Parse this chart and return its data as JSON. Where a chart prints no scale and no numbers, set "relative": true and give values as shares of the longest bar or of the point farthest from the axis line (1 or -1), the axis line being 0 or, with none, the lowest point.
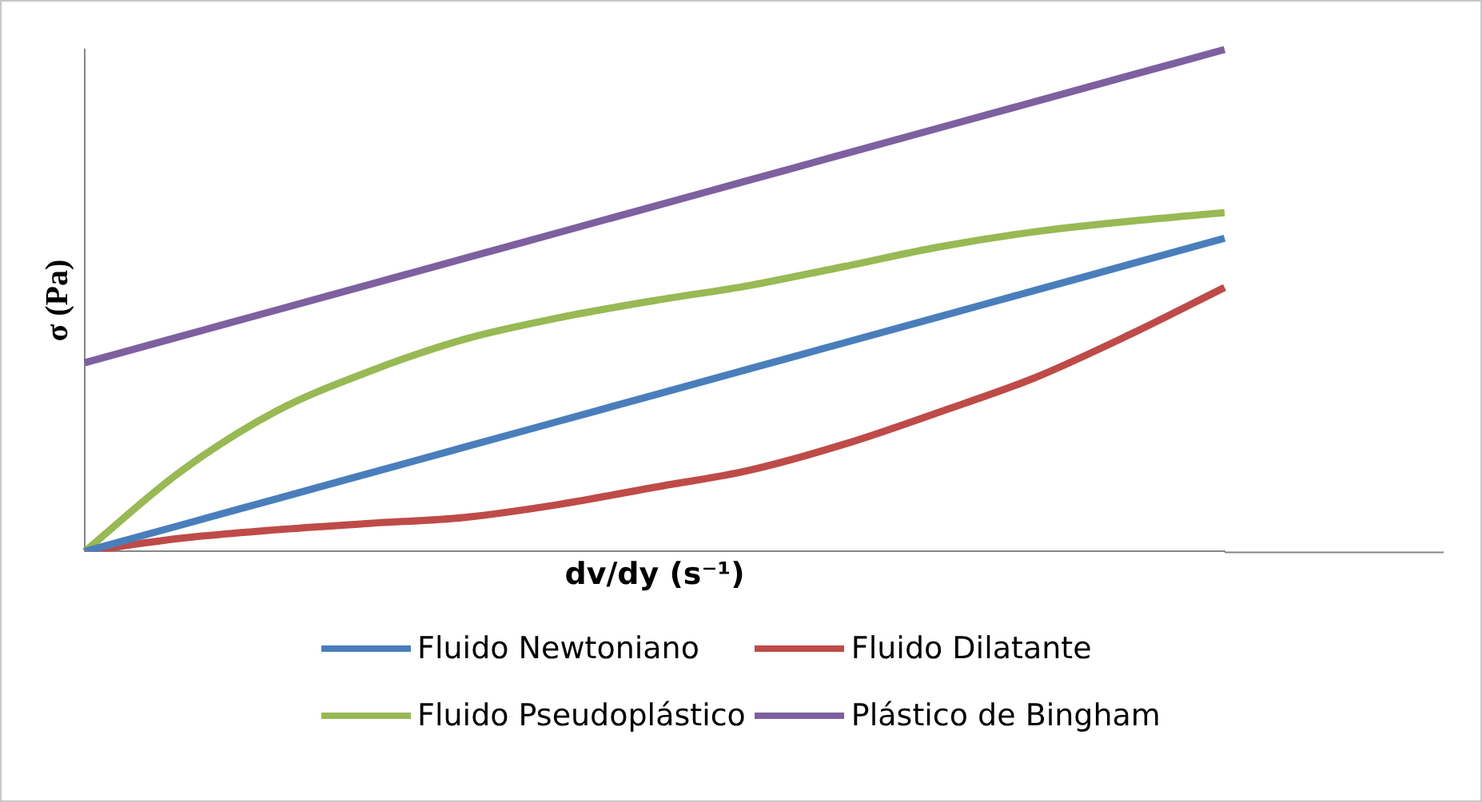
{
  "chart_data": {
    "type": "line",
    "xlabel": "dv/dy (s⁻¹)",
    "ylabel": "σ (Pa)",
    "relative": true,
    "legend": "bottom",
    "grid": false,
    "marker": "none",
    "categories": [
      null,
      null,
      null,
      null,
      null,
      null,
      null,
      null,
      null,
      null,
      null,
      null,
      null
    ],
    "series": [
      {
        "name": "Fluido Newtoniano",
        "color": "#4a7ebb",
        "values": [
          0,
          0.052,
          0.104,
          0.156,
          0.208,
          0.26,
          0.312,
          0.364,
          0.416,
          0.468,
          0.52,
          0.572,
          0.624
        ]
      },
      {
        "name": "Fluido Dilatante",
        "color": "#be4b48",
        "values": [
          0,
          0.026,
          0.043,
          0.056,
          0.068,
          0.094,
          0.128,
          0.162,
          0.214,
          0.278,
          0.346,
          0.432,
          0.526
        ]
      },
      {
        "name": "Fluido Pseudoplástico",
        "color": "#98b954",
        "values": [
          0,
          0.158,
          0.278,
          0.359,
          0.423,
          0.466,
          0.5,
          0.53,
          0.568,
          0.607,
          0.637,
          0.658,
          0.675
        ]
      },
      {
        "name": "Plástico de Bingham",
        "color": "#7d60a0",
        "values": [
          0.376,
          0.428,
          0.48,
          0.532,
          0.584,
          0.636,
          0.688,
          0.74,
          0.792,
          0.844,
          0.896,
          0.948,
          1
        ]
      }
    ]
  }
}
